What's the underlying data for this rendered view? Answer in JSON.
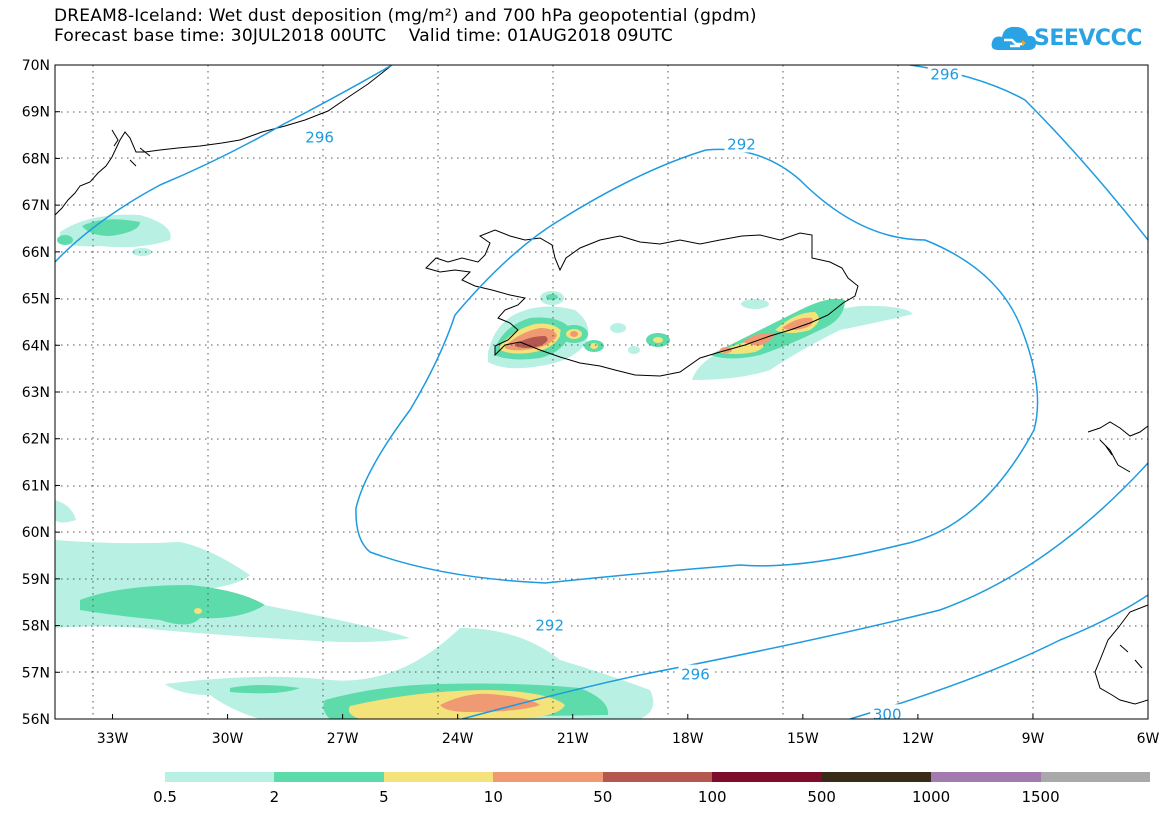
{
  "header": {
    "title_line1": "DREAM8-Iceland: Wet dust deposition (mg/m²) and 700 hPa geopotential (gpdm)",
    "title_line2": "Forecast base time: 30JUL2018 00UTC    Valid time: 01AUG2018 09UTC"
  },
  "logo": {
    "text": "SEEVCCC",
    "icon": "cloud-logo-icon",
    "color": "#29a3e3"
  },
  "map": {
    "lon_range": [
      -34.5,
      -6
    ],
    "lat_range": [
      56,
      70
    ],
    "gridlines": "dotted",
    "lat_labels": [
      "70N",
      "69N",
      "68N",
      "67N",
      "66N",
      "65N",
      "64N",
      "63N",
      "62N",
      "61N",
      "60N",
      "59N",
      "58N",
      "57N",
      "56N"
    ],
    "lat_values": [
      70,
      69,
      68,
      67,
      66,
      65,
      64,
      63,
      62,
      61,
      60,
      59,
      58,
      57,
      56
    ],
    "lon_labels": [
      "33W",
      "30W",
      "27W",
      "24W",
      "21W",
      "18W",
      "15W",
      "12W",
      "9W",
      "6W"
    ],
    "lon_values": [
      -33,
      -30,
      -27,
      -24,
      -21,
      -18,
      -15,
      -12,
      -9,
      -6
    ],
    "contour_color": "#1e9be0",
    "contour_labels": [
      {
        "text": "296",
        "lon": -27.6,
        "lat": 68.45
      },
      {
        "text": "296",
        "lon": -11.3,
        "lat": 69.8
      },
      {
        "text": "292",
        "lon": -16.6,
        "lat": 68.3
      },
      {
        "text": "292",
        "lon": -21.6,
        "lat": 58.0
      },
      {
        "text": "296",
        "lon": -17.8,
        "lat": 56.95
      },
      {
        "text": "300",
        "lon": -12.8,
        "lat": 56.1
      }
    ]
  },
  "legend": {
    "colors": [
      "#b8f0e4",
      "#5ddbaa",
      "#f4e27a",
      "#ef9a72",
      "#b3574f",
      "#7d0d2a",
      "#3a2a18",
      "#a27ab0",
      "#a9a9a9"
    ],
    "labels": [
      "0.5",
      "2",
      "5",
      "10",
      "50",
      "100",
      "500",
      "1000",
      "1500"
    ]
  }
}
